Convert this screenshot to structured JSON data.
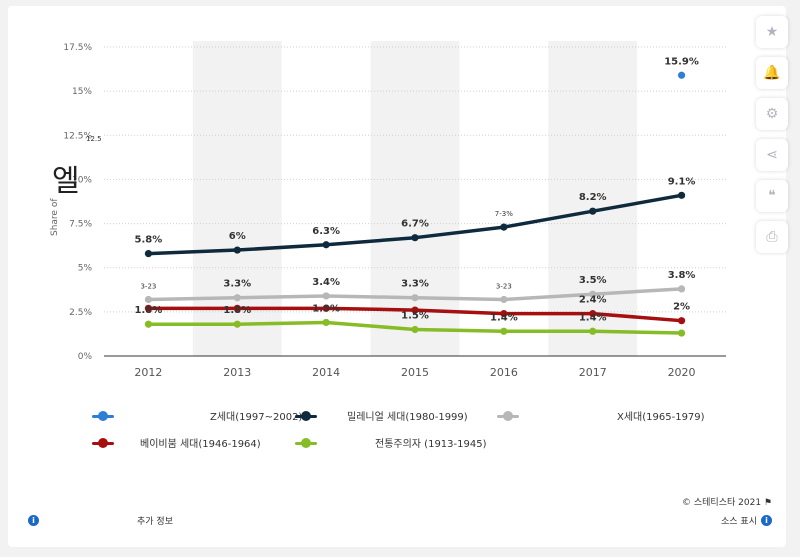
{
  "chart_data": {
    "type": "line",
    "categories": [
      "2012",
      "2013",
      "2014",
      "2015",
      "2016",
      "2017",
      "2020"
    ],
    "ylim": [
      0,
      17.5
    ],
    "yticks": [
      "0%",
      "2.5%",
      "5%",
      "7.5%",
      "10%",
      "12.5%",
      "15%",
      "17.5%"
    ],
    "yticks_values": [
      0,
      2.5,
      5,
      7.5,
      10,
      12.5,
      15,
      17.5
    ],
    "ylabel": "Share of",
    "grid": true,
    "legend_placement": "bottom",
    "series": [
      {
        "name": "Z세대(1997~2002)",
        "color": "#2e7dd7",
        "values": [
          null,
          null,
          null,
          null,
          null,
          null,
          15.9
        ],
        "labels": [
          "",
          "",
          "",
          "",
          "",
          "",
          "15.9%"
        ]
      },
      {
        "name": "밀레니얼 세대(1980-1999)",
        "color": "#0f2a3d",
        "values": [
          5.8,
          6.0,
          6.3,
          6.7,
          7.3,
          8.2,
          9.1
        ],
        "labels": [
          "5.8%",
          "6%",
          "6.3%",
          "6.7%",
          "7-3%",
          "8.2%",
          "9.1%"
        ]
      },
      {
        "name": "X세대(1965-1979)",
        "color": "#b7b7b7",
        "values": [
          3.2,
          3.3,
          3.4,
          3.3,
          3.2,
          3.5,
          3.8
        ],
        "labels": [
          "3-23",
          "3.3%",
          "3.4%",
          "3.3%",
          "3-23",
          "3.5%",
          "3.8%"
        ]
      },
      {
        "name": "베이비붐 세대(1946-1964)",
        "color": "#a50f0f",
        "values": [
          2.7,
          2.7,
          2.7,
          2.6,
          2.4,
          2.4,
          2.0
        ],
        "labels": [
          "",
          "",
          "",
          "",
          "",
          "2.4%",
          "2%"
        ]
      },
      {
        "name": "전통주의자 (1913-1945)",
        "color": "#86bc25",
        "values": [
          1.8,
          1.8,
          1.9,
          1.5,
          1.4,
          1.4,
          1.3
        ],
        "labels": [
          "1.8%",
          "1.8%",
          "1.9%",
          "1.5%",
          "1.4%",
          "1.4%",
          ""
        ]
      }
    ]
  },
  "overlay_text": {
    "glyph": "엘",
    "small_note": "12.5"
  },
  "toolbar": {
    "items": [
      {
        "name": "star-icon",
        "glyph": "★"
      },
      {
        "name": "bell-icon",
        "glyph": "🔔"
      },
      {
        "name": "gear-icon",
        "glyph": "⚙"
      },
      {
        "name": "share-icon",
        "glyph": "⋖"
      },
      {
        "name": "quote-icon",
        "glyph": "❝"
      },
      {
        "name": "print-icon",
        "glyph": "⎙"
      }
    ]
  },
  "footer": {
    "credit": "© 스테티스타 2021",
    "more_info": "추가 정보",
    "source": "소스 표시"
  },
  "colors": {
    "band": "#f2f2f2",
    "grid": "#cfcfcf",
    "info": "#1a68c8"
  }
}
